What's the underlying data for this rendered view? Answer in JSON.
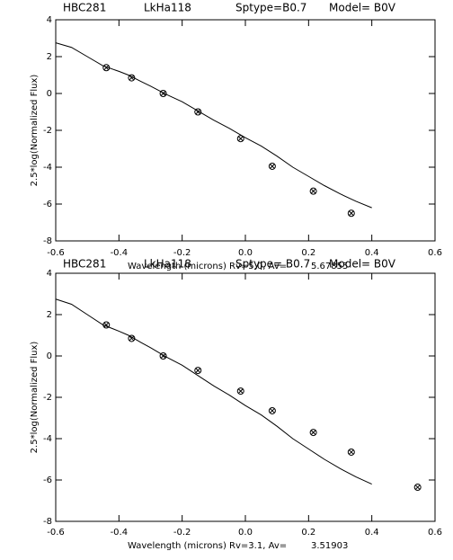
{
  "chart_data": [
    {
      "type": "scatter",
      "header": [
        "HBC281",
        "LkHa118",
        "Sptype=B0.7",
        "Model= B0V"
      ],
      "xlabel": "Wavelength (microns) Rv=5.0, Av=",
      "av": "5.67855",
      "ylabel": "2.5*log(Normalized Flux)",
      "xlim": [
        -0.6,
        0.6
      ],
      "xticks": [
        -0.6,
        -0.4,
        -0.2,
        {
          "value": 0,
          "label": "0.0"
        },
        0.2,
        0.4,
        0.6
      ],
      "ylim": [
        -8,
        4
      ],
      "yticks": [
        -8,
        -6,
        -4,
        -2,
        0,
        2,
        4
      ],
      "color": "#000000",
      "model": {
        "x": [
          -0.6,
          -0.55,
          -0.5,
          -0.45,
          -0.4,
          -0.37,
          -0.33,
          -0.3,
          -0.25,
          -0.2,
          -0.15,
          -0.1,
          -0.05,
          0.0,
          0.05,
          0.1,
          0.15,
          0.2,
          0.25,
          0.3,
          0.35,
          0.4
        ],
        "values": [
          2.75,
          2.5,
          2.0,
          1.5,
          1.2,
          1.0,
          0.65,
          0.4,
          -0.05,
          -0.45,
          -0.95,
          -1.45,
          -1.9,
          -2.4,
          -2.85,
          -3.4,
          -4.0,
          -4.5,
          -5.0,
          -5.45,
          -5.85,
          -6.2
        ]
      },
      "observed": {
        "x": [
          -0.44,
          -0.36,
          -0.26,
          -0.15,
          -0.015,
          0.085,
          0.215,
          0.335
        ],
        "values": [
          1.4,
          0.85,
          0.0,
          -1.0,
          -2.45,
          -3.95,
          -5.3,
          -6.5
        ]
      }
    },
    {
      "type": "scatter",
      "header": [
        "HBC281",
        "LkHa118",
        "Sptype= B0.7",
        "Model= B0V"
      ],
      "xlabel": "Wavelength (microns) Rv=3.1, Av=",
      "av": "3.51903",
      "ylabel": "2.5*log(Normalized Flux)",
      "xlim": [
        -0.6,
        0.6
      ],
      "xticks": [
        -0.6,
        -0.4,
        -0.2,
        {
          "value": 0,
          "label": "0.0"
        },
        0.2,
        0.4,
        0.6
      ],
      "ylim": [
        -8,
        4
      ],
      "yticks": [
        -8,
        -6,
        -4,
        -2,
        0,
        2,
        4
      ],
      "color": "#000000",
      "model": {
        "x": [
          -0.6,
          -0.55,
          -0.5,
          -0.45,
          -0.4,
          -0.37,
          -0.33,
          -0.3,
          -0.25,
          -0.2,
          -0.15,
          -0.1,
          -0.05,
          0.0,
          0.05,
          0.1,
          0.15,
          0.2,
          0.25,
          0.3,
          0.35,
          0.4
        ],
        "values": [
          2.75,
          2.5,
          2.0,
          1.5,
          1.2,
          1.0,
          0.65,
          0.4,
          -0.05,
          -0.45,
          -0.95,
          -1.45,
          -1.9,
          -2.4,
          -2.85,
          -3.4,
          -4.0,
          -4.5,
          -5.0,
          -5.45,
          -5.85,
          -6.2
        ]
      },
      "observed": {
        "x": [
          -0.44,
          -0.36,
          -0.26,
          -0.15,
          -0.015,
          0.085,
          0.215,
          0.335,
          0.545
        ],
        "values": [
          1.5,
          0.85,
          0.0,
          -0.7,
          -1.7,
          -2.65,
          -3.7,
          -4.65,
          -6.35
        ]
      }
    }
  ]
}
